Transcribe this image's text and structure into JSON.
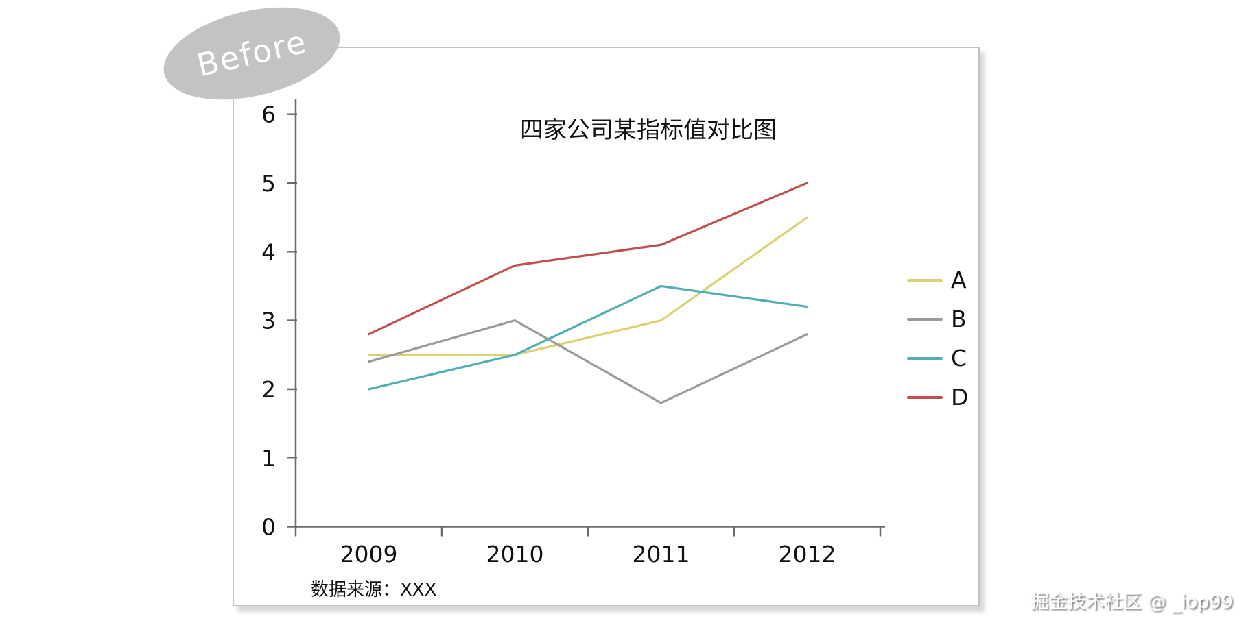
{
  "badge": {
    "label": "Before"
  },
  "watermark": {
    "text": "掘金技术社区 @ _iop99"
  },
  "chart_data": {
    "type": "line",
    "title": "四家公司某指标值对比图",
    "source_note": "数据来源：XXX",
    "categories": [
      "2009",
      "2010",
      "2011",
      "2012"
    ],
    "ylim": [
      0,
      6
    ],
    "yticks": [
      0,
      1,
      2,
      3,
      4,
      5,
      6
    ],
    "grid": false,
    "legend_position": "right-middle",
    "axis_color": "#6a6a6a",
    "series": [
      {
        "name": "A",
        "color": "#dcd172",
        "values": [
          2.5,
          2.5,
          3.0,
          4.5
        ]
      },
      {
        "name": "B",
        "color": "#9b9b9b",
        "values": [
          2.4,
          3.0,
          1.8,
          2.8
        ]
      },
      {
        "name": "C",
        "color": "#53aeb4",
        "values": [
          2.0,
          2.5,
          3.5,
          3.2
        ]
      },
      {
        "name": "D",
        "color": "#c0504d",
        "values": [
          2.8,
          3.8,
          4.1,
          5.0
        ]
      }
    ]
  }
}
